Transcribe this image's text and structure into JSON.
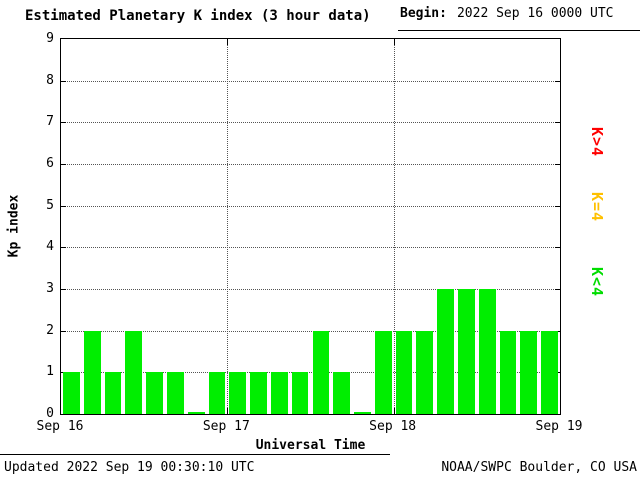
{
  "header": {
    "title": "Estimated Planetary K index (3 hour data)",
    "begin_label": "Begin:",
    "begin_value": "2022 Sep 16 0000 UTC"
  },
  "chart_data": {
    "type": "bar",
    "title": "Estimated Planetary K index (3 hour data)",
    "xlabel": "Universal Time",
    "ylabel": "Kp index",
    "ylim": [
      0,
      9
    ],
    "yticks": [
      0,
      1,
      2,
      3,
      4,
      5,
      6,
      7,
      8,
      9
    ],
    "x_tick_labels": [
      "Sep 16",
      "Sep 17",
      "Sep 18",
      "Sep 19"
    ],
    "begin": "2022 Sep 16 0000 UTC",
    "interval_hours": 3,
    "values": [
      1,
      2,
      1,
      2,
      1,
      1,
      0,
      1,
      1,
      1,
      1,
      1,
      2,
      1,
      0,
      2,
      2,
      2,
      3,
      3,
      3,
      2,
      2,
      2
    ],
    "bar_color": "#00EE00",
    "grid": "dotted horizontal lines at each integer, dotted vertical lines at day boundaries",
    "legend_position": "right",
    "legend": [
      {
        "label": "K>4",
        "color": "#FF0000"
      },
      {
        "label": "K=4",
        "color": "#FFC000"
      },
      {
        "label": "K<4",
        "color": "#00DD00"
      }
    ]
  },
  "footer": {
    "updated": "Updated 2022 Sep 19 00:30:10 UTC",
    "source": "NOAA/SWPC Boulder, CO USA"
  }
}
